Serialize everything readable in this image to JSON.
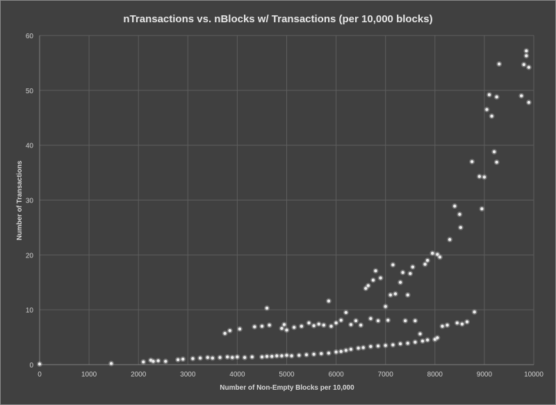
{
  "chart_data": {
    "type": "scatter",
    "title": "nTransactions vs. nBlocks w/ Transactions (per 10,000 blocks)",
    "xlabel": "Number of Non-Empty Blocks per 10,000",
    "ylabel": "Number of Transactions",
    "xlim": [
      0,
      10000
    ],
    "ylim": [
      0,
      60
    ],
    "x_ticks": [
      0,
      1000,
      2000,
      3000,
      4000,
      5000,
      6000,
      7000,
      8000,
      9000,
      10000
    ],
    "y_ticks": [
      0,
      10,
      20,
      30,
      40,
      50,
      60
    ],
    "grid": true,
    "legend": "none",
    "series": [
      {
        "points": [
          [
            0,
            0.1
          ],
          [
            1450,
            0.2
          ],
          [
            2100,
            0.5
          ],
          [
            2250,
            0.8
          ],
          [
            2300,
            0.6
          ],
          [
            2400,
            0.7
          ],
          [
            2550,
            0.6
          ],
          [
            2800,
            0.9
          ],
          [
            2900,
            1.0
          ],
          [
            3100,
            1.1
          ],
          [
            3250,
            1.2
          ],
          [
            3400,
            1.3
          ],
          [
            3500,
            1.2
          ],
          [
            3650,
            1.3
          ],
          [
            3800,
            1.4
          ],
          [
            3900,
            1.3
          ],
          [
            4000,
            1.4
          ],
          [
            4150,
            1.3
          ],
          [
            4300,
            1.4
          ],
          [
            4500,
            1.4
          ],
          [
            4600,
            1.5
          ],
          [
            4700,
            1.5
          ],
          [
            4800,
            1.6
          ],
          [
            4900,
            1.6
          ],
          [
            5000,
            1.7
          ],
          [
            5100,
            1.6
          ],
          [
            5250,
            1.7
          ],
          [
            5400,
            1.8
          ],
          [
            5550,
            1.9
          ],
          [
            5700,
            2.0
          ],
          [
            5850,
            2.1
          ],
          [
            6000,
            2.3
          ],
          [
            6100,
            2.4
          ],
          [
            6200,
            2.6
          ],
          [
            6300,
            2.8
          ],
          [
            6450,
            3.0
          ],
          [
            6550,
            3.1
          ],
          [
            6700,
            3.3
          ],
          [
            6850,
            3.4
          ],
          [
            7000,
            3.5
          ],
          [
            7150,
            3.6
          ],
          [
            7300,
            3.8
          ],
          [
            7450,
            3.9
          ],
          [
            7600,
            4.1
          ],
          [
            7750,
            4.3
          ],
          [
            7850,
            4.5
          ],
          [
            8000,
            4.6
          ],
          [
            8050,
            4.9
          ],
          [
            3750,
            5.7
          ],
          [
            3850,
            6.2
          ],
          [
            4050,
            6.5
          ],
          [
            4350,
            6.9
          ],
          [
            4500,
            7.0
          ],
          [
            4600,
            10.3
          ],
          [
            4650,
            7.2
          ],
          [
            4900,
            6.6
          ],
          [
            4950,
            7.3
          ],
          [
            5000,
            6.3
          ],
          [
            5150,
            6.8
          ],
          [
            5300,
            7.0
          ],
          [
            5450,
            7.6
          ],
          [
            5550,
            7.1
          ],
          [
            5650,
            7.4
          ],
          [
            5750,
            7.2
          ],
          [
            5850,
            11.6
          ],
          [
            5900,
            7.0
          ],
          [
            6000,
            7.6
          ],
          [
            6100,
            8.1
          ],
          [
            6200,
            9.5
          ],
          [
            6300,
            7.3
          ],
          [
            6400,
            8.0
          ],
          [
            6500,
            7.2
          ],
          [
            6600,
            13.9
          ],
          [
            6650,
            14.4
          ],
          [
            6700,
            8.4
          ],
          [
            6750,
            15.4
          ],
          [
            6800,
            17.1
          ],
          [
            6850,
            8.0
          ],
          [
            6900,
            15.8
          ],
          [
            7000,
            10.6
          ],
          [
            7050,
            8.1
          ],
          [
            7100,
            12.7
          ],
          [
            7150,
            18.2
          ],
          [
            7200,
            12.9
          ],
          [
            7300,
            15.0
          ],
          [
            7350,
            16.8
          ],
          [
            7400,
            8.0
          ],
          [
            7450,
            12.7
          ],
          [
            7500,
            16.6
          ],
          [
            7550,
            17.8
          ],
          [
            7600,
            8.0
          ],
          [
            7700,
            5.6
          ],
          [
            7800,
            18.3
          ],
          [
            7850,
            19.0
          ],
          [
            7950,
            20.3
          ],
          [
            8050,
            20.1
          ],
          [
            8100,
            19.6
          ],
          [
            8150,
            7.0
          ],
          [
            8250,
            7.2
          ],
          [
            8300,
            22.8
          ],
          [
            8400,
            28.9
          ],
          [
            8450,
            7.6
          ],
          [
            8500,
            27.4
          ],
          [
            8520,
            25.0
          ],
          [
            8550,
            7.4
          ],
          [
            8650,
            7.8
          ],
          [
            8750,
            37.0
          ],
          [
            8800,
            9.6
          ],
          [
            8900,
            34.3
          ],
          [
            8950,
            28.4
          ],
          [
            9000,
            34.2
          ],
          [
            9050,
            46.5
          ],
          [
            9100,
            49.2
          ],
          [
            9150,
            45.3
          ],
          [
            9200,
            38.8
          ],
          [
            9250,
            48.8
          ],
          [
            9250,
            36.9
          ],
          [
            9300,
            54.8
          ],
          [
            9750,
            49.0
          ],
          [
            9800,
            54.7
          ],
          [
            9850,
            57.2
          ],
          [
            9850,
            56.3
          ],
          [
            9900,
            54.2
          ],
          [
            9900,
            47.8
          ]
        ]
      }
    ]
  }
}
